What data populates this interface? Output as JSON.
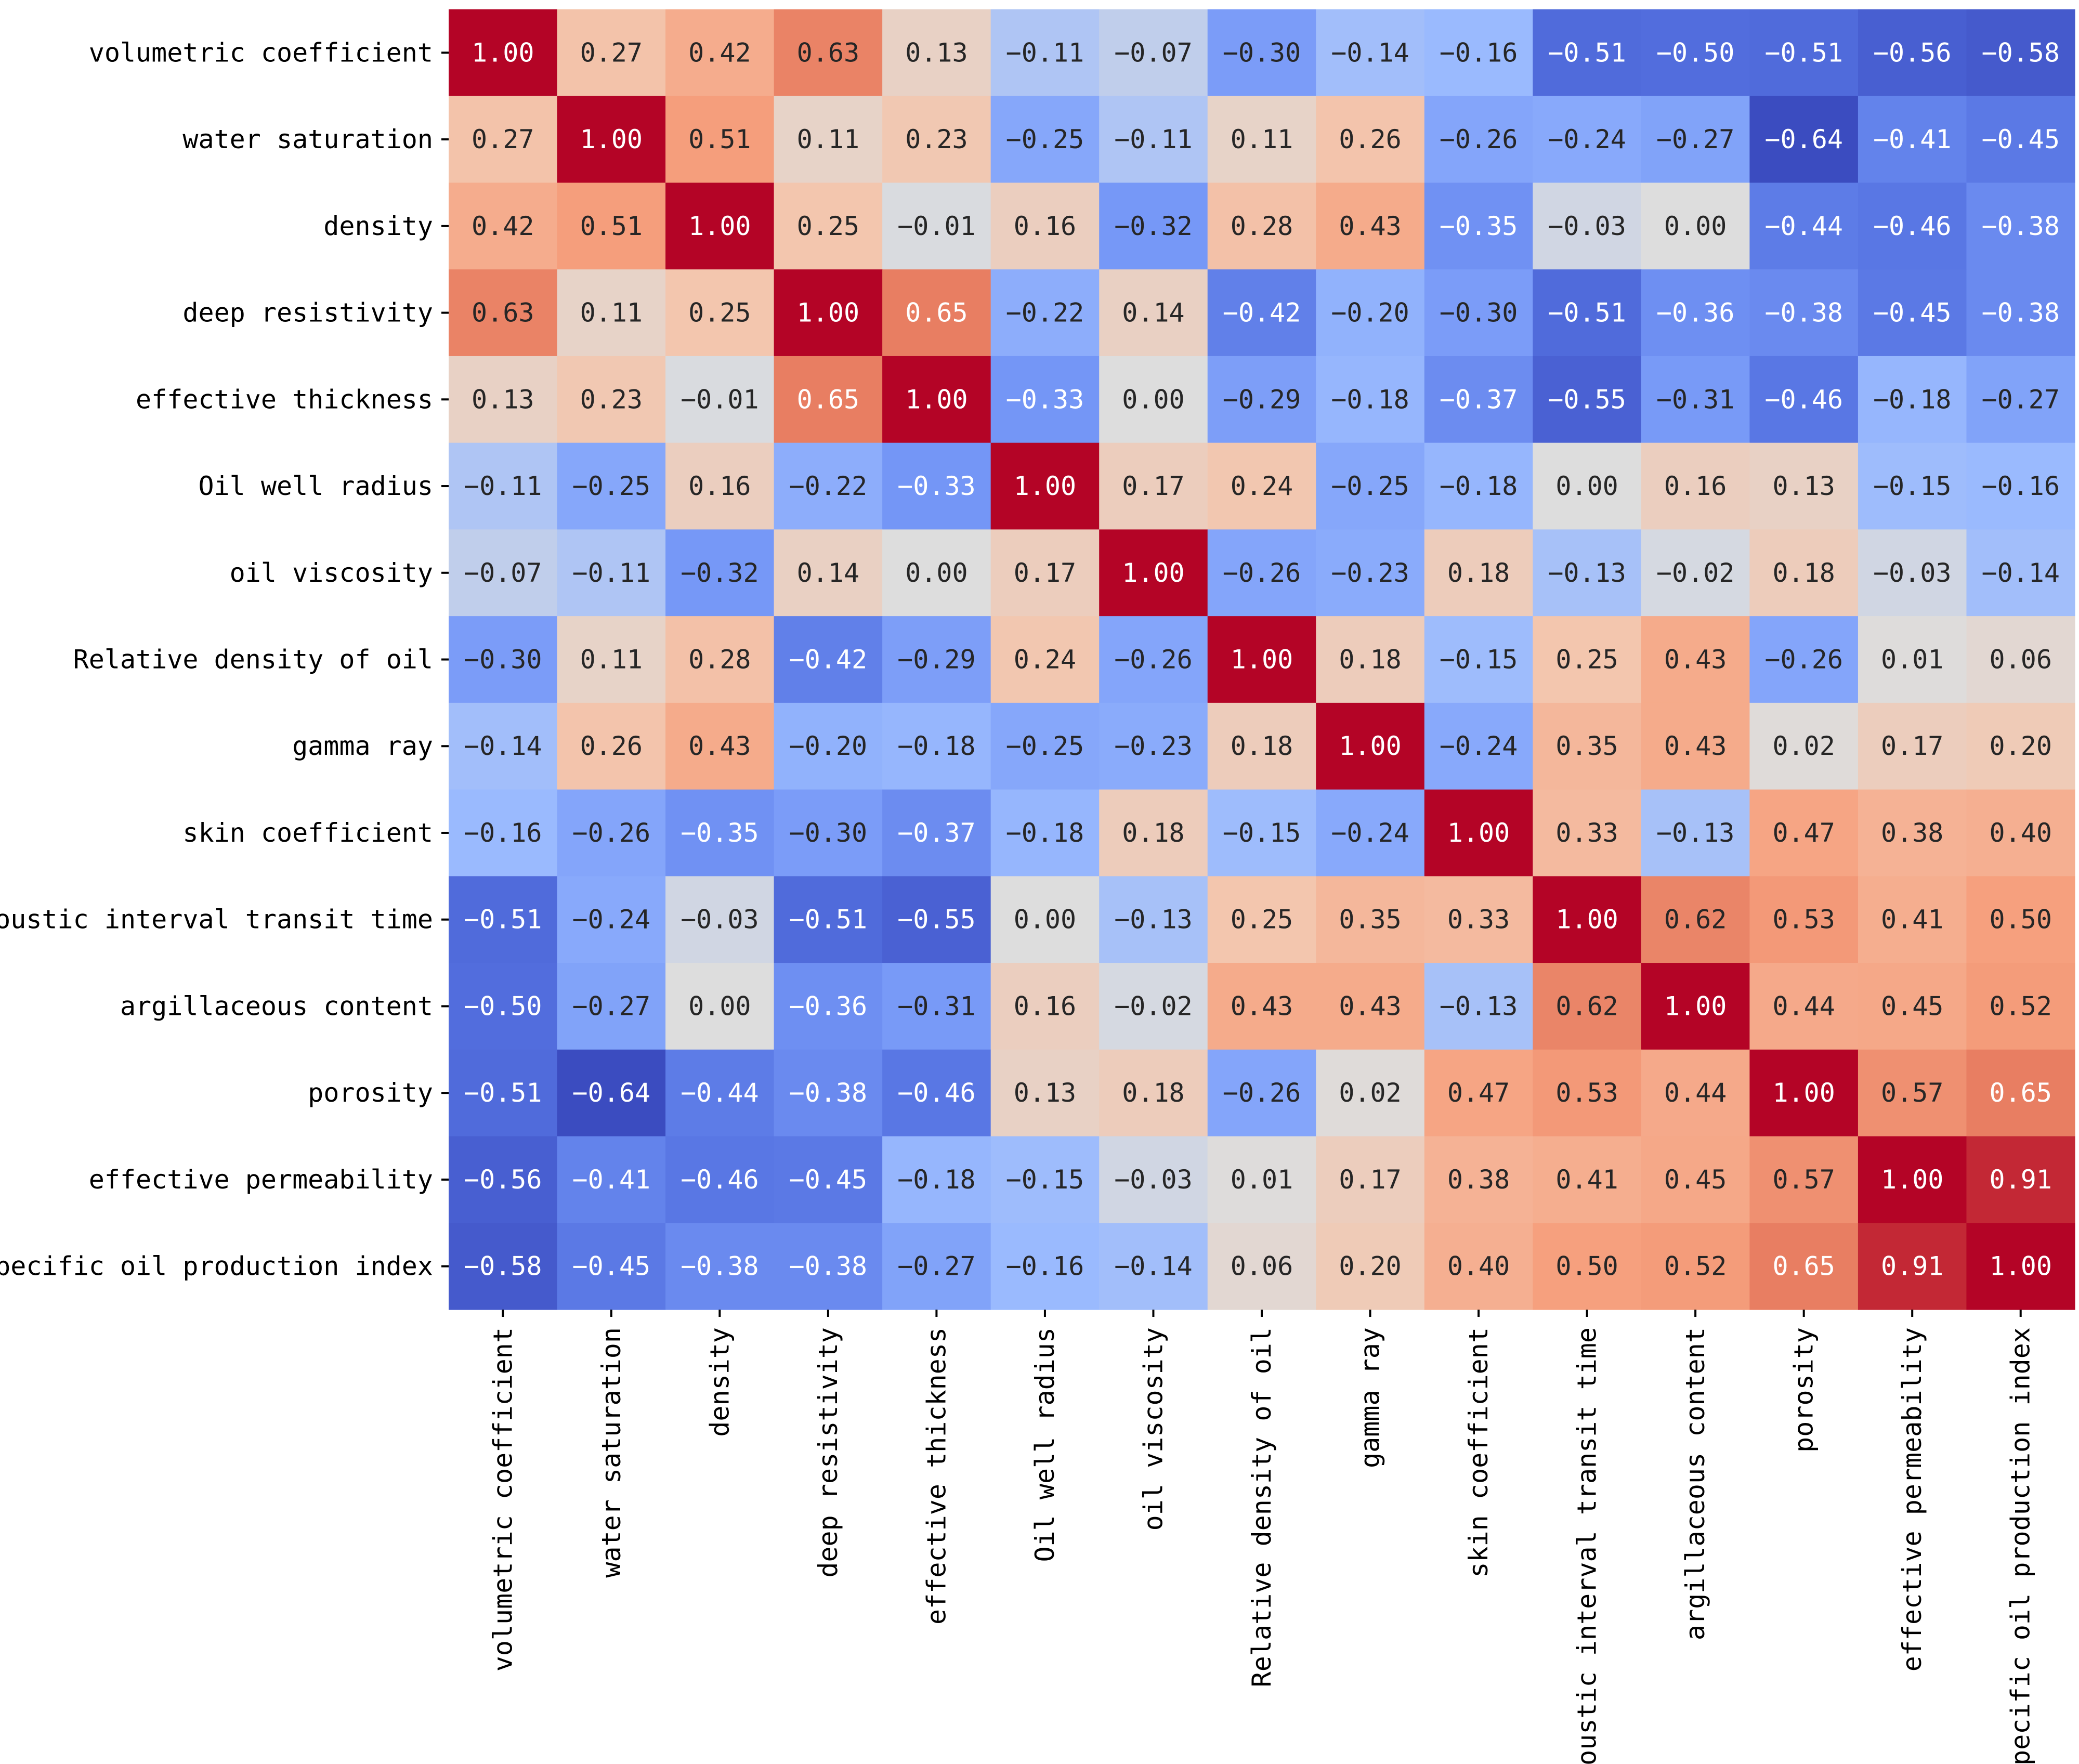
{
  "chart_data": {
    "type": "heatmap",
    "title": "",
    "xlabel": "",
    "ylabel": "",
    "colormap": "coolwarm",
    "value_range": [
      -0.64,
      1.0
    ],
    "colors": {
      "low": "#3b4cc0",
      "mid": "#dddddd",
      "high": "#b40426"
    },
    "labels": [
      "volumetric coefficient",
      "water saturation",
      "density",
      "deep resistivity",
      "effective thickness",
      "Oil well radius",
      "oil viscosity",
      "Relative density of oil",
      "gamma ray",
      "skin coefficient",
      "acoustic interval transit time",
      "argillaceous content",
      "porosity",
      "effective permeability",
      "specific oil production index"
    ],
    "matrix": [
      [
        1.0,
        0.27,
        0.42,
        0.63,
        0.13,
        -0.11,
        -0.07,
        -0.3,
        -0.14,
        -0.16,
        -0.51,
        -0.5,
        -0.51,
        -0.56,
        -0.58
      ],
      [
        0.27,
        1.0,
        0.51,
        0.11,
        0.23,
        -0.25,
        -0.11,
        0.11,
        0.26,
        -0.26,
        -0.24,
        -0.27,
        -0.64,
        -0.41,
        -0.45
      ],
      [
        0.42,
        0.51,
        1.0,
        0.25,
        -0.01,
        0.16,
        -0.32,
        0.28,
        0.43,
        -0.35,
        -0.03,
        0.0,
        -0.44,
        -0.46,
        -0.38
      ],
      [
        0.63,
        0.11,
        0.25,
        1.0,
        0.65,
        -0.22,
        0.14,
        -0.42,
        -0.2,
        -0.3,
        -0.51,
        -0.36,
        -0.38,
        -0.45,
        -0.38
      ],
      [
        0.13,
        0.23,
        -0.01,
        0.65,
        1.0,
        -0.33,
        0.0,
        -0.29,
        -0.18,
        -0.37,
        -0.55,
        -0.31,
        -0.46,
        -0.18,
        -0.27
      ],
      [
        -0.11,
        -0.25,
        0.16,
        -0.22,
        -0.33,
        1.0,
        0.17,
        0.24,
        -0.25,
        -0.18,
        0.0,
        0.16,
        0.13,
        -0.15,
        -0.16
      ],
      [
        -0.07,
        -0.11,
        -0.32,
        0.14,
        0.0,
        0.17,
        1.0,
        -0.26,
        -0.23,
        0.18,
        -0.13,
        -0.02,
        0.18,
        -0.03,
        -0.14
      ],
      [
        -0.3,
        0.11,
        0.28,
        -0.42,
        -0.29,
        0.24,
        -0.26,
        1.0,
        0.18,
        -0.15,
        0.25,
        0.43,
        -0.26,
        0.01,
        0.06
      ],
      [
        -0.14,
        0.26,
        0.43,
        -0.2,
        -0.18,
        -0.25,
        -0.23,
        0.18,
        1.0,
        -0.24,
        0.35,
        0.43,
        0.02,
        0.17,
        0.2
      ],
      [
        -0.16,
        -0.26,
        -0.35,
        -0.3,
        -0.37,
        -0.18,
        0.18,
        -0.15,
        -0.24,
        1.0,
        0.33,
        -0.13,
        0.47,
        0.38,
        0.4
      ],
      [
        -0.51,
        -0.24,
        -0.03,
        -0.51,
        -0.55,
        0.0,
        -0.13,
        0.25,
        0.35,
        0.33,
        1.0,
        0.62,
        0.53,
        0.41,
        0.5
      ],
      [
        -0.5,
        -0.27,
        0.0,
        -0.36,
        -0.31,
        0.16,
        -0.02,
        0.43,
        0.43,
        -0.13,
        0.62,
        1.0,
        0.44,
        0.45,
        0.52
      ],
      [
        -0.51,
        -0.64,
        -0.44,
        -0.38,
        -0.46,
        0.13,
        0.18,
        -0.26,
        0.02,
        0.47,
        0.53,
        0.44,
        1.0,
        0.57,
        0.65
      ],
      [
        -0.56,
        -0.41,
        -0.46,
        -0.45,
        -0.18,
        -0.15,
        -0.03,
        0.01,
        0.17,
        0.38,
        0.41,
        0.45,
        0.57,
        1.0,
        0.91
      ],
      [
        -0.58,
        -0.45,
        -0.38,
        -0.38,
        -0.27,
        -0.16,
        -0.14,
        0.06,
        0.2,
        0.4,
        0.5,
        0.52,
        0.65,
        0.91,
        1.0
      ]
    ]
  }
}
